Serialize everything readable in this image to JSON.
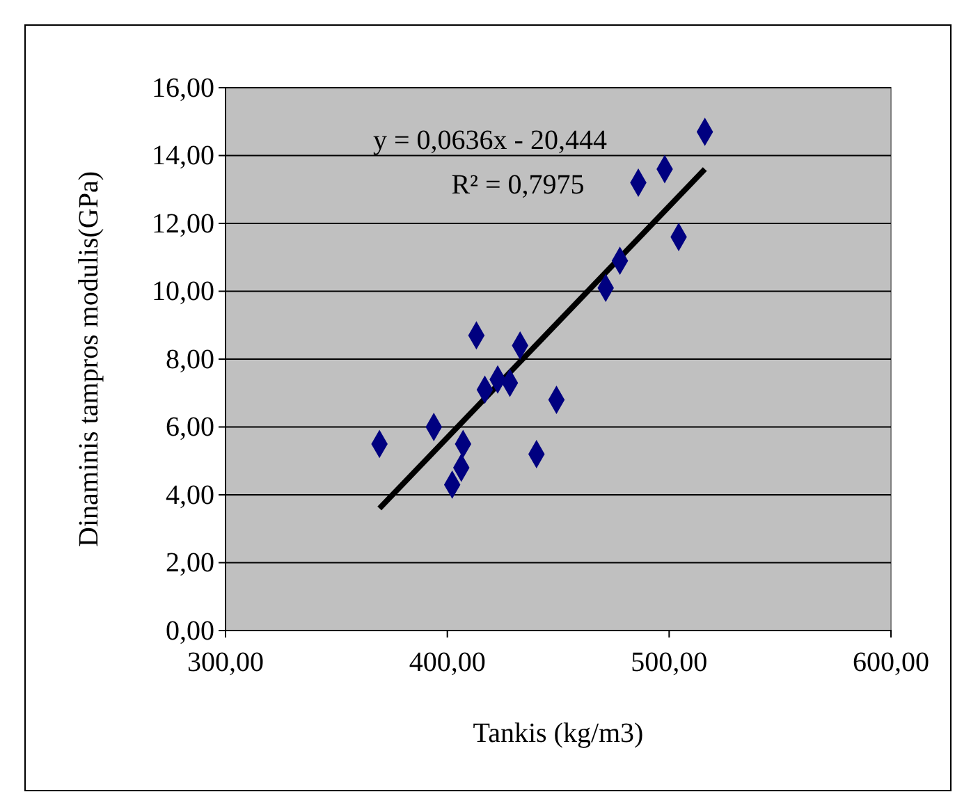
{
  "chart_data": {
    "type": "scatter",
    "xlabel": "Tankis (kg/m3)",
    "ylabel": "Dinaminis tampros modulis(GPa)",
    "annotations": [
      "y = 0,0636x - 20,444",
      "R² = 0,7975"
    ],
    "xlim": [
      300,
      600
    ],
    "xticks": [
      {
        "value": 300,
        "label": "300,00"
      },
      {
        "value": 400,
        "label": "400,00"
      },
      {
        "value": 500,
        "label": "500,00"
      },
      {
        "value": 600,
        "label": "600,00"
      }
    ],
    "ylim": [
      0,
      16
    ],
    "yticks": [
      {
        "value": 0,
        "label": "0,00"
      },
      {
        "value": 2,
        "label": "2,00"
      },
      {
        "value": 4,
        "label": "4,00"
      },
      {
        "value": 6,
        "label": "6,00"
      },
      {
        "value": 8,
        "label": "8,00"
      },
      {
        "value": 10,
        "label": "10,00"
      },
      {
        "value": 12,
        "label": "12,00"
      },
      {
        "value": 14,
        "label": "14,00"
      },
      {
        "value": 16,
        "label": "16,00"
      }
    ],
    "grid": "y",
    "series": [
      {
        "marker": "diamond",
        "color": "#000080",
        "x": [
          369.4,
          393.9,
          402.2,
          406.3,
          407.1,
          413.1,
          416.9,
          422.7,
          428.2,
          432.8,
          440.2,
          449.2,
          471.4,
          477.8,
          486.1,
          498.0,
          504.3,
          516.1
        ],
        "values": [
          5.5,
          6.0,
          4.3,
          4.8,
          5.5,
          8.7,
          7.1,
          7.4,
          7.3,
          8.4,
          5.2,
          6.8,
          10.1,
          10.9,
          13.2,
          13.6,
          11.6,
          14.7
        ]
      },
      {
        "type": "line",
        "marker": "none",
        "color": "#000000",
        "x": [
          369.4,
          516.1
        ],
        "values": [
          3.6,
          13.6
        ]
      }
    ]
  }
}
